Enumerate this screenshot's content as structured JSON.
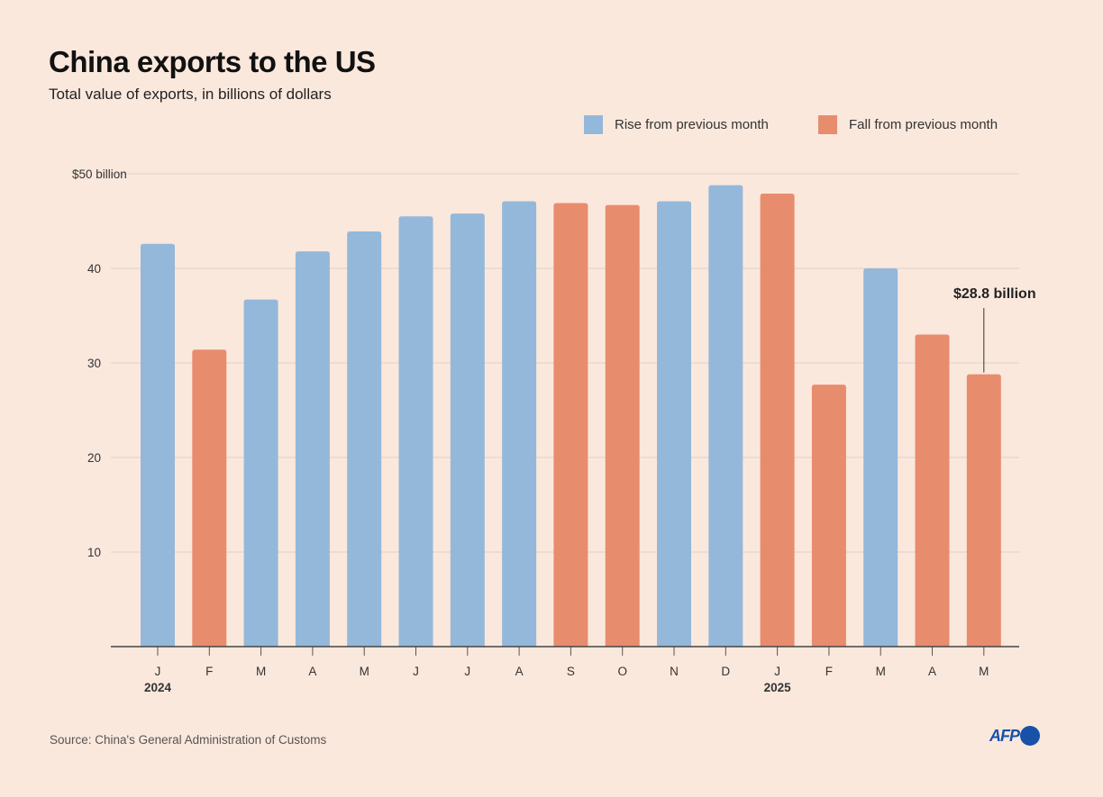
{
  "chart_data": {
    "type": "bar",
    "title": "China exports to the US",
    "subtitle": "Total value of exports, in billions of dollars",
    "categories": [
      "J",
      "F",
      "M",
      "A",
      "M",
      "J",
      "J",
      "A",
      "S",
      "O",
      "N",
      "D",
      "J",
      "F",
      "M",
      "A",
      "M"
    ],
    "year_labels": [
      {
        "index": 0,
        "label": "2024"
      },
      {
        "index": 12,
        "label": "2025"
      }
    ],
    "values": [
      42.6,
      31.4,
      36.7,
      41.8,
      43.9,
      45.5,
      45.8,
      47.1,
      46.9,
      46.7,
      47.1,
      48.8,
      47.9,
      27.7,
      40.0,
      33.0,
      28.8
    ],
    "change": [
      "rise",
      "fall",
      "rise",
      "rise",
      "rise",
      "rise",
      "rise",
      "rise",
      "fall",
      "fall",
      "rise",
      "rise",
      "fall",
      "fall",
      "rise",
      "fall",
      "fall"
    ],
    "ylim": [
      0,
      50
    ],
    "yticks": [
      10,
      20,
      30,
      40,
      50
    ],
    "ytick_labels": [
      "10",
      "20",
      "30",
      "40",
      "$50 billion"
    ],
    "grid": true,
    "legend": [
      {
        "key": "rise",
        "label": "Rise from previous month",
        "color": "#94b8da"
      },
      {
        "key": "fall",
        "label": "Fall from previous month",
        "color": "#e88c6e"
      }
    ],
    "legend_placement": "top-right",
    "annotation": {
      "index": 16,
      "text": "$28.8 billion"
    }
  },
  "source": "Source: China's General Administration of Customs",
  "logo": "AFP"
}
